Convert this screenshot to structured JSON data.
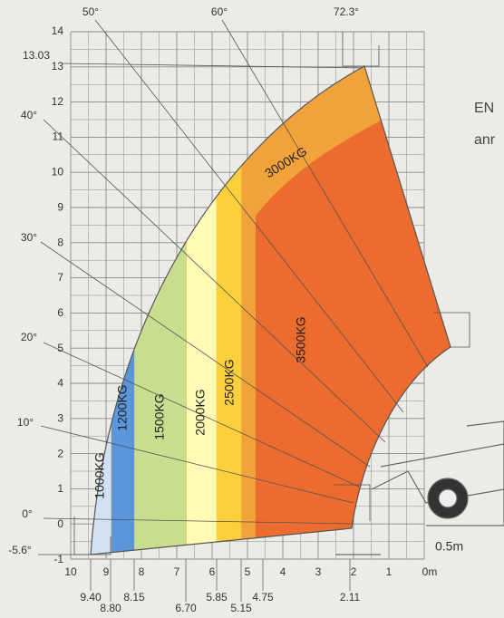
{
  "y_axis": {
    "labels": [
      "14",
      "13",
      "12",
      "11",
      "10",
      "9",
      "8",
      "7",
      "6",
      "5",
      "4",
      "3",
      "2",
      "1",
      "0",
      "-1"
    ]
  },
  "x_axis": {
    "labels": [
      "10",
      "9",
      "8",
      "7",
      "6",
      "5",
      "4",
      "3",
      "2",
      "1",
      "0m"
    ]
  },
  "marker_labels": [
    "9.40",
    "8.80",
    "8.15",
    "6.70",
    "5.85",
    "5.15",
    "4.75",
    "2.11"
  ],
  "angle_labels": [
    "0°",
    "10°",
    "20°",
    "30°",
    "40°",
    "50°",
    "60°",
    "72.3°",
    "-5.6°"
  ],
  "height_label": "13.03",
  "zones": [
    "1000KG",
    "1200KG",
    "1500KG",
    "2000KG",
    "2500KG",
    "3000KG",
    "3500KG"
  ],
  "scale_label": "0.5m",
  "side_text": [
    "EN",
    "anr"
  ]
}
